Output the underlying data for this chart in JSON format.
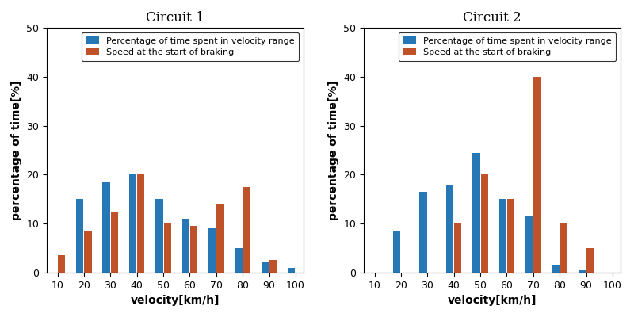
{
  "circuit1": {
    "title": "Circuit 1",
    "categories": [
      10,
      20,
      30,
      40,
      50,
      60,
      70,
      80,
      90,
      100
    ],
    "blue_values": [
      0,
      15,
      18.5,
      20,
      15,
      11,
      9,
      5,
      2,
      1
    ],
    "orange_values": [
      3.5,
      8.5,
      12.5,
      20,
      10,
      9.5,
      14,
      17.5,
      2.5,
      0
    ]
  },
  "circuit2": {
    "title": "Circuit 2",
    "categories": [
      10,
      20,
      30,
      40,
      50,
      60,
      70,
      80,
      90,
      100
    ],
    "blue_values": [
      0,
      8.5,
      16.5,
      18,
      24.5,
      15,
      11.5,
      1.5,
      0.5,
      0
    ],
    "orange_values": [
      0,
      0,
      0,
      10,
      20,
      15,
      40,
      10,
      5,
      0
    ]
  },
  "blue_color": "#2577b5",
  "orange_color": "#c0522a",
  "legend_labels": [
    "Percentage of time spent in velocity range",
    "Speed at the start of braking"
  ],
  "xlabel": "velocity[km/h]",
  "ylabel": "percentage of time[%]",
  "ylim": [
    0,
    50
  ],
  "xticks": [
    10,
    20,
    30,
    40,
    50,
    60,
    70,
    80,
    90,
    100
  ],
  "yticks": [
    0,
    10,
    20,
    30,
    40,
    50
  ],
  "bar_width": 2.8,
  "bar_gap": 0.3,
  "figsize": [
    8.0,
    4.0
  ],
  "dpi": 100,
  "bg_color": "#f5f5f5",
  "title_fontsize": 12,
  "label_fontsize": 10,
  "tick_fontsize": 9,
  "legend_fontsize": 8
}
